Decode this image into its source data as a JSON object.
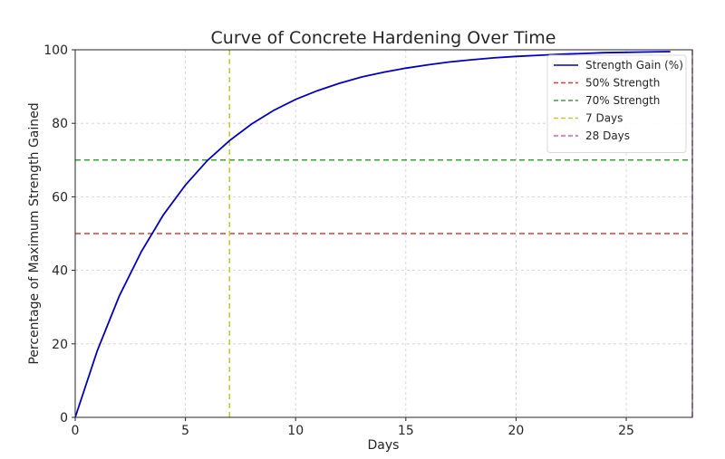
{
  "chart_data": {
    "type": "line",
    "title": "Curve of Concrete Hardening Over Time",
    "xlabel": "Days",
    "ylabel": "Percentage of Maximum Strength Gained",
    "xlim": [
      0,
      28
    ],
    "ylim": [
      0,
      100
    ],
    "xticks": [
      0,
      5,
      10,
      15,
      20,
      25
    ],
    "yticks": [
      0,
      20,
      40,
      60,
      80,
      100
    ],
    "grid": true,
    "legend_position": "top-right",
    "series": [
      {
        "name": "Strength Gain (%)",
        "color": "#0000c8",
        "style": "solid",
        "x": [
          0,
          1,
          2,
          3,
          4,
          5,
          6,
          7,
          8,
          9,
          10,
          11,
          12,
          13,
          14,
          15,
          16,
          17,
          18,
          19,
          20,
          21,
          22,
          23,
          24,
          25,
          26,
          27
        ],
        "y": [
          0,
          18.1,
          33.0,
          45.1,
          55.1,
          63.2,
          69.9,
          75.3,
          79.8,
          83.5,
          86.5,
          88.9,
          90.9,
          92.6,
          93.9,
          95.0,
          95.9,
          96.7,
          97.3,
          97.8,
          98.2,
          98.5,
          98.8,
          99.0,
          99.2,
          99.3,
          99.4,
          99.5
        ]
      }
    ],
    "hlines": [
      {
        "name": "50% Strength",
        "y": 50,
        "color": "#e8382f"
      },
      {
        "name": "70% Strength",
        "y": 70,
        "color": "#3aa035"
      }
    ],
    "vlines": [
      {
        "name": "7 Days",
        "x": 7,
        "color": "#c8c832"
      },
      {
        "name": "28 Days",
        "x": 28,
        "color": "#d957d4"
      }
    ]
  }
}
